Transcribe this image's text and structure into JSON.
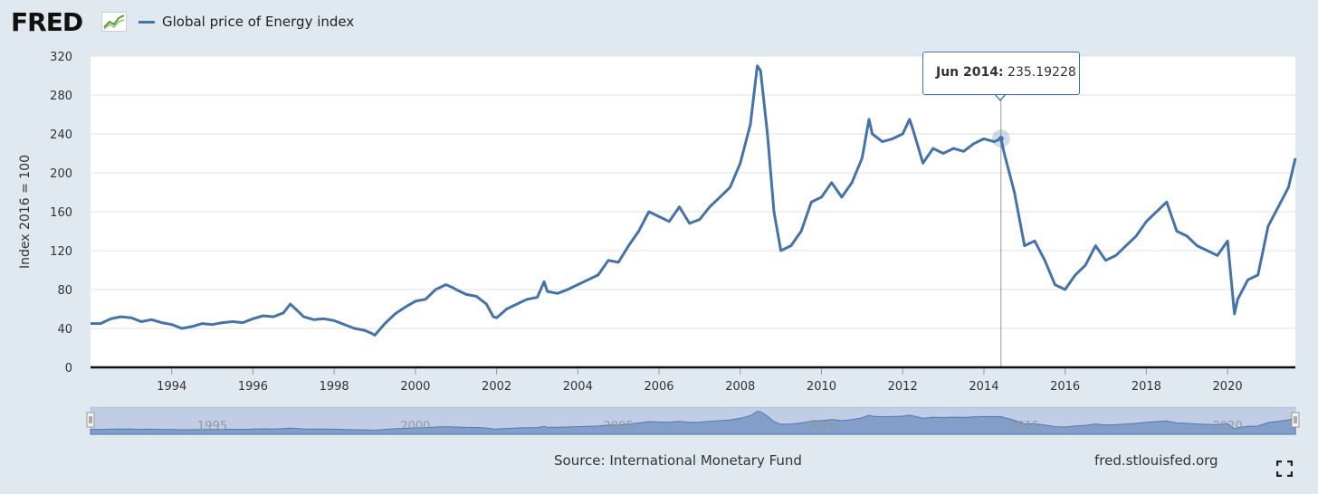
{
  "header": {
    "logo_text": "FRED",
    "series_label": "Global price of Energy index"
  },
  "footer": {
    "source": "Source: International Monetary Fund",
    "url": "fred.stlouisfed.org"
  },
  "tooltip": {
    "date": "Jun 2014:",
    "value": "235.19228"
  },
  "colors": {
    "series": "#4572a7",
    "background": "#e1e9f0",
    "plot": "#ffffff"
  },
  "chart_data": {
    "type": "line",
    "title": "Global price of Energy index",
    "ylabel": "Index 2016 = 100",
    "xlabel": "",
    "ylim": [
      0,
      320
    ],
    "xlim": [
      1992.0,
      2021.67
    ],
    "y_ticks": [
      0,
      40,
      80,
      120,
      160,
      200,
      240,
      280,
      320
    ],
    "x_ticks": [
      1994,
      1996,
      1998,
      2000,
      2002,
      2004,
      2006,
      2008,
      2010,
      2012,
      2014,
      2016,
      2018,
      2020
    ],
    "navigator_ticks": [
      "1995",
      "2000",
      "2005",
      "2010",
      "2015",
      "2020"
    ],
    "highlight": {
      "x": 2014.42,
      "y": 235.19228
    },
    "series": [
      {
        "name": "Global price of Energy index",
        "x": [
          1992.0,
          1992.25,
          1992.5,
          1992.75,
          1993.0,
          1993.25,
          1993.5,
          1993.75,
          1994.0,
          1994.25,
          1994.5,
          1994.75,
          1995.0,
          1995.25,
          1995.5,
          1995.75,
          1996.0,
          1996.25,
          1996.5,
          1996.75,
          1996.92,
          1997.0,
          1997.25,
          1997.5,
          1997.75,
          1998.0,
          1998.25,
          1998.5,
          1998.75,
          1998.92,
          1999.0,
          1999.25,
          1999.5,
          1999.75,
          2000.0,
          2000.25,
          2000.5,
          2000.75,
          2000.92,
          2001.0,
          2001.25,
          2001.5,
          2001.75,
          2001.92,
          2002.0,
          2002.25,
          2002.5,
          2002.75,
          2003.0,
          2003.17,
          2003.25,
          2003.5,
          2003.75,
          2004.0,
          2004.25,
          2004.5,
          2004.75,
          2005.0,
          2005.25,
          2005.5,
          2005.75,
          2006.0,
          2006.25,
          2006.5,
          2006.75,
          2007.0,
          2007.25,
          2007.5,
          2007.75,
          2008.0,
          2008.25,
          2008.42,
          2008.5,
          2008.67,
          2008.83,
          2009.0,
          2009.25,
          2009.5,
          2009.75,
          2010.0,
          2010.25,
          2010.5,
          2010.75,
          2011.0,
          2011.17,
          2011.25,
          2011.5,
          2011.75,
          2012.0,
          2012.17,
          2012.25,
          2012.5,
          2012.75,
          2013.0,
          2013.25,
          2013.5,
          2013.75,
          2014.0,
          2014.25,
          2014.42,
          2014.5,
          2014.75,
          2015.0,
          2015.25,
          2015.5,
          2015.75,
          2016.0,
          2016.25,
          2016.5,
          2016.75,
          2017.0,
          2017.25,
          2017.5,
          2017.75,
          2018.0,
          2018.25,
          2018.5,
          2018.75,
          2019.0,
          2019.25,
          2019.5,
          2019.75,
          2020.0,
          2020.17,
          2020.25,
          2020.5,
          2020.75,
          2021.0,
          2021.25,
          2021.5,
          2021.67
        ],
        "values": [
          45,
          45,
          50,
          52,
          51,
          47,
          49,
          46,
          44,
          40,
          42,
          45,
          44,
          46,
          47,
          46,
          50,
          53,
          52,
          56,
          65,
          62,
          52,
          49,
          50,
          48,
          44,
          40,
          38,
          35,
          33,
          45,
          55,
          62,
          68,
          70,
          80,
          85,
          82,
          80,
          75,
          73,
          65,
          52,
          51,
          60,
          65,
          70,
          72,
          88,
          78,
          76,
          80,
          85,
          90,
          95,
          110,
          108,
          125,
          140,
          160,
          155,
          150,
          165,
          148,
          152,
          165,
          175,
          185,
          210,
          250,
          310,
          305,
          240,
          160,
          120,
          125,
          140,
          170,
          175,
          190,
          175,
          190,
          215,
          255,
          240,
          232,
          235,
          240,
          255,
          245,
          210,
          225,
          220,
          225,
          222,
          230,
          235,
          232,
          235,
          220,
          180,
          125,
          130,
          110,
          85,
          80,
          95,
          105,
          125,
          110,
          115,
          125,
          135,
          150,
          160,
          170,
          140,
          135,
          125,
          120,
          115,
          130,
          55,
          70,
          90,
          95,
          145,
          165,
          185,
          215
        ]
      }
    ]
  }
}
